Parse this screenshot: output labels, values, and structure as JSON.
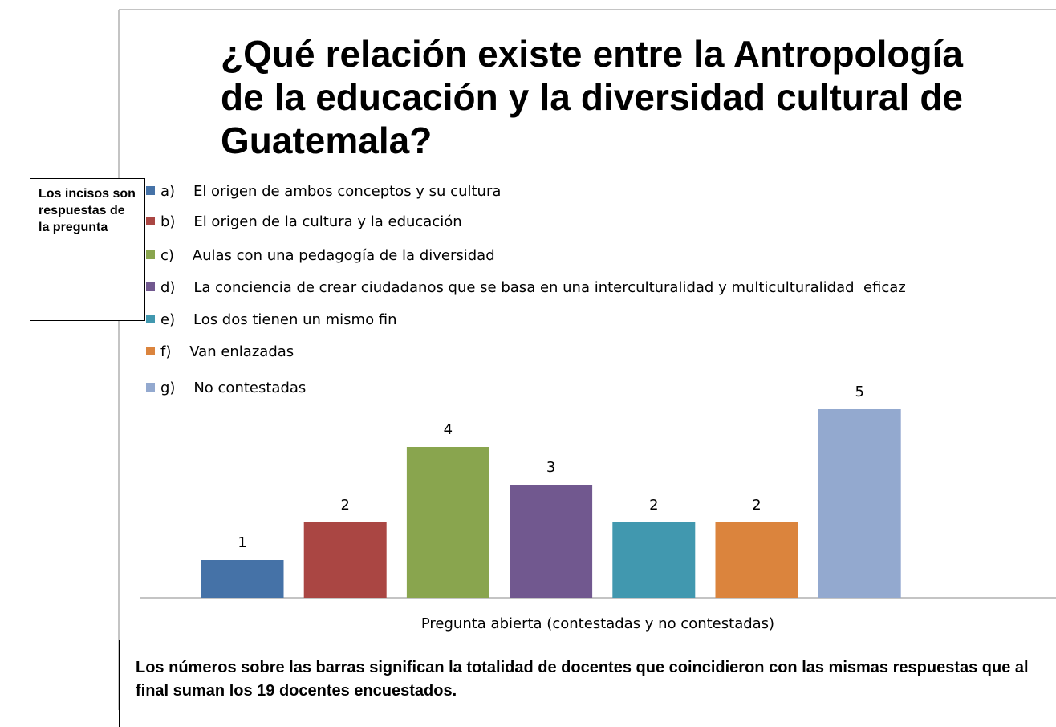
{
  "chart_data": {
    "type": "bar",
    "title": "¿Qué relación existe entre la Antropología de la educación y la diversidad cultural de Guatemala?",
    "categories": [
      "Pregunta abierta (contestadas y no contestadas)"
    ],
    "series": [
      {
        "name": "a)    El origen de ambos conceptos y su cultura",
        "color": "#4572a7",
        "values": [
          1
        ]
      },
      {
        "name": "b)    El origen de la cultura y la educación",
        "color": "#aa4643",
        "values": [
          2
        ]
      },
      {
        "name": "c)    Aulas con una pedagogía de la diversidad",
        "color": "#89a54e",
        "values": [
          4
        ]
      },
      {
        "name": "d)    La conciencia de crear ciudadanos que se basa en una interculturalidad y multiculturalidad  eficaz",
        "color": "#71588f",
        "values": [
          3
        ]
      },
      {
        "name": "e)    Los dos tienen un mismo fin",
        "color": "#4198af",
        "values": [
          2
        ]
      },
      {
        "name": "f)    Van enlazadas",
        "color": "#db843d",
        "values": [
          2
        ]
      },
      {
        "name": "g)    No contestadas",
        "color": "#93a9cf",
        "values": [
          5
        ]
      }
    ],
    "ylim": [
      0,
      6
    ],
    "annotations": [
      "Los incisos son respuestas de la pregunta",
      "Los números sobre las barras significan la totalidad de docentes que coincidieron con las mismas respuestas que al final suman los 19 docentes encuestados."
    ]
  }
}
